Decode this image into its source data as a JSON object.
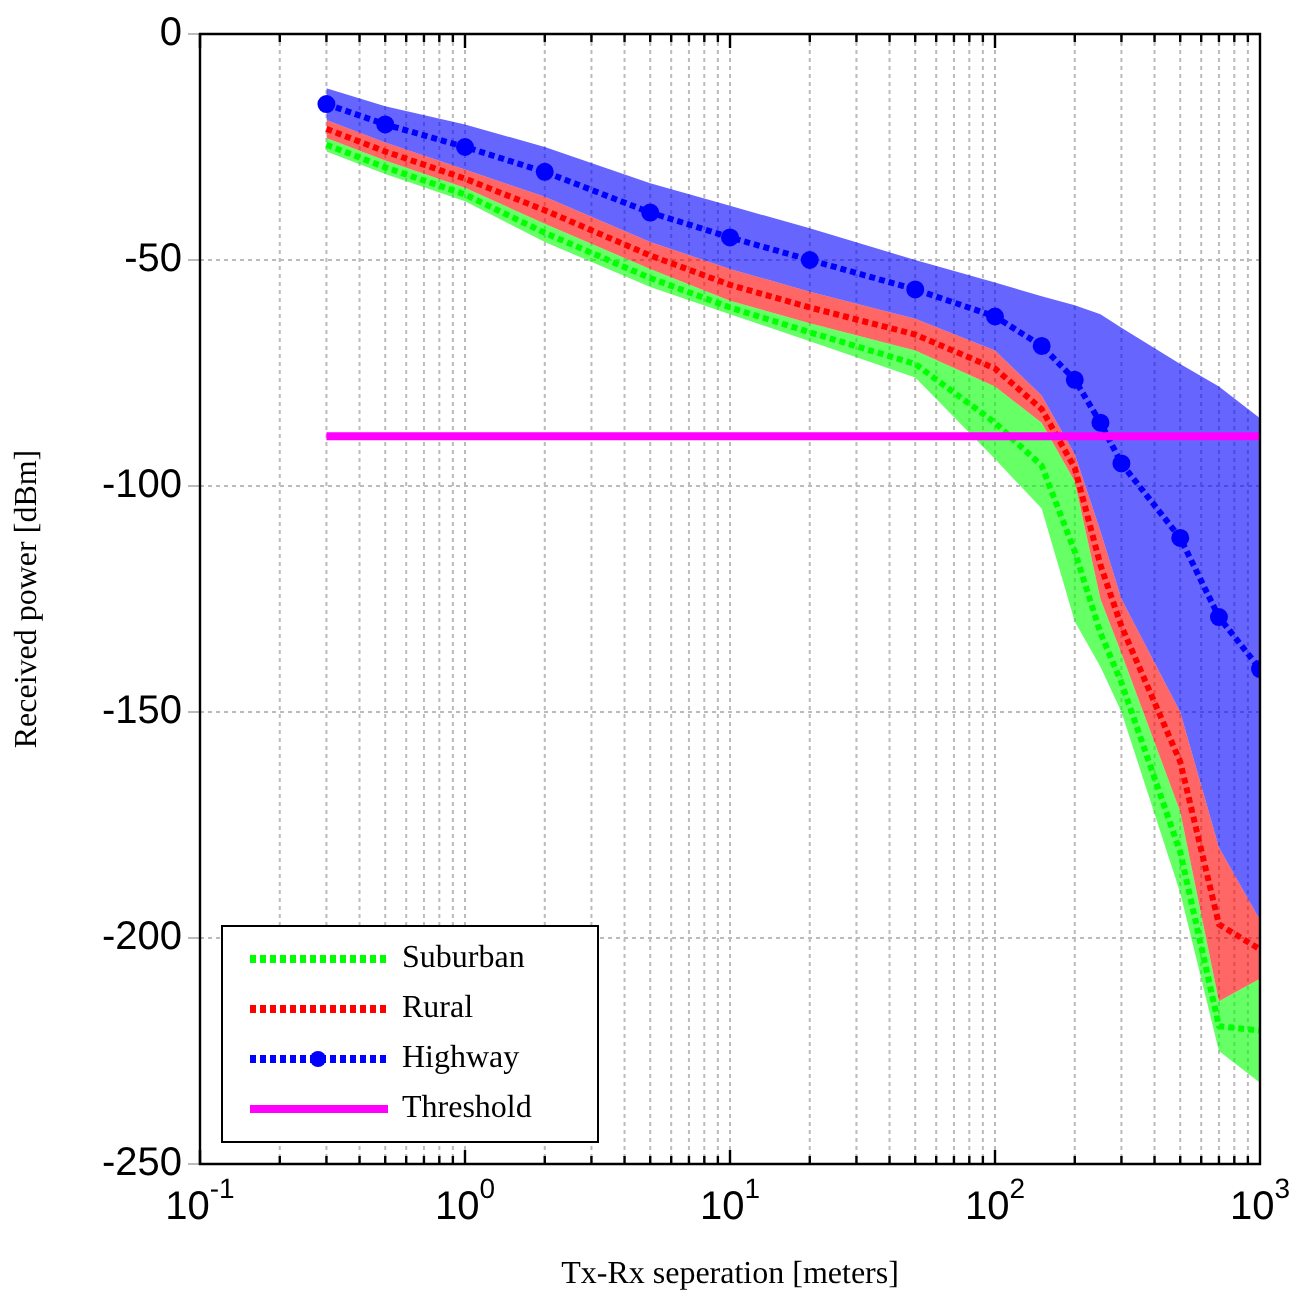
{
  "chart_data": {
    "type": "line",
    "xlabel": "Tx-Rx seperation [meters]",
    "ylabel": "Received power [dBm]",
    "log": "x",
    "grid": true,
    "legend": "bottom left",
    "xlim": [
      0.1,
      1000
    ],
    "xticks": [
      {
        "value": 0.1,
        "label": "10$^{-1}$"
      },
      {
        "value": 1,
        "label": "10$^{0}$"
      },
      {
        "value": 10,
        "label": "10$^{1}$"
      },
      {
        "value": 100,
        "label": "10$^{2}$"
      },
      {
        "value": 1000,
        "label": "10$^{3}$"
      }
    ],
    "ylim": [
      -250,
      0
    ],
    "yticks": [
      -250,
      -200,
      -150,
      -100,
      -50,
      0
    ],
    "series": [
      {
        "name": "Suburban",
        "color": "#00ff00",
        "line_style": "dotted",
        "x": [
          0.3,
          0.5,
          1,
          2,
          5,
          10,
          20,
          50,
          100,
          150,
          200,
          250,
          300,
          500,
          700,
          1000
        ],
        "values": [
          -24.5,
          -29.5,
          -35.5,
          -44,
          -54,
          -60.5,
          -66,
          -73,
          -86,
          -95.5,
          -114.5,
          -132.5,
          -143.5,
          -181,
          -219.5,
          -220.5
        ],
        "lower": [
          -26,
          -31,
          -37,
          -46,
          -56,
          -62,
          -68,
          -76,
          -94,
          -105,
          -130,
          -140,
          -150,
          -190,
          -225,
          -232
        ],
        "upper": [
          -23,
          -28,
          -34,
          -42,
          -52,
          -59,
          -64,
          -70,
          -78,
          -86,
          -99,
          -125,
          -137,
          -172,
          -214,
          -209
        ]
      },
      {
        "name": "Rural",
        "color": "#ff0000",
        "line_style": "dotted",
        "x": [
          0.3,
          0.5,
          1,
          2,
          5,
          10,
          20,
          50,
          100,
          150,
          200,
          250,
          300,
          500,
          700,
          1000
        ],
        "values": [
          -21,
          -26,
          -32,
          -39,
          -49,
          -55.5,
          -60.5,
          -66.5,
          -74,
          -83,
          -96,
          -117.5,
          -131,
          -161,
          -197,
          -202.5
        ],
        "lower": [
          -23,
          -28,
          -34,
          -42,
          -52,
          -59,
          -64,
          -70,
          -78,
          -86,
          -99,
          -125,
          -137,
          -172,
          -214,
          -209
        ],
        "upper": [
          -19,
          -24,
          -30,
          -36,
          -46,
          -52,
          -57,
          -63,
          -70,
          -80,
          -93,
          -110,
          -125,
          -150,
          -180,
          -196
        ]
      },
      {
        "name": "Highway",
        "color": "#0000ff",
        "line_style": "dotted",
        "marker": "circle",
        "x": [
          0.3,
          0.5,
          1,
          2,
          5,
          10,
          20,
          50,
          100,
          150,
          200,
          250,
          300,
          500,
          700,
          1000
        ],
        "values": [
          -15.5,
          -20,
          -25,
          -30.5,
          -39.5,
          -45,
          -50,
          -56.5,
          -62.5,
          -69,
          -76.5,
          -86,
          -95,
          -111.5,
          -129,
          -140.5
        ],
        "lower": [
          -19,
          -24,
          -30,
          -36,
          -46,
          -52,
          -57,
          -63,
          -70,
          -80,
          -93,
          -110,
          -125,
          -150,
          -180,
          -196
        ],
        "upper": [
          -12,
          -16,
          -20,
          -25,
          -33,
          -38,
          -43,
          -50,
          -55,
          -58,
          -60,
          -62,
          -65,
          -73,
          -78,
          -85
        ]
      },
      {
        "name": "Threshold",
        "color": "#ff00ff",
        "line_style": "solid",
        "x": [
          0.3,
          1000
        ],
        "values": [
          -89,
          -89
        ]
      }
    ]
  }
}
